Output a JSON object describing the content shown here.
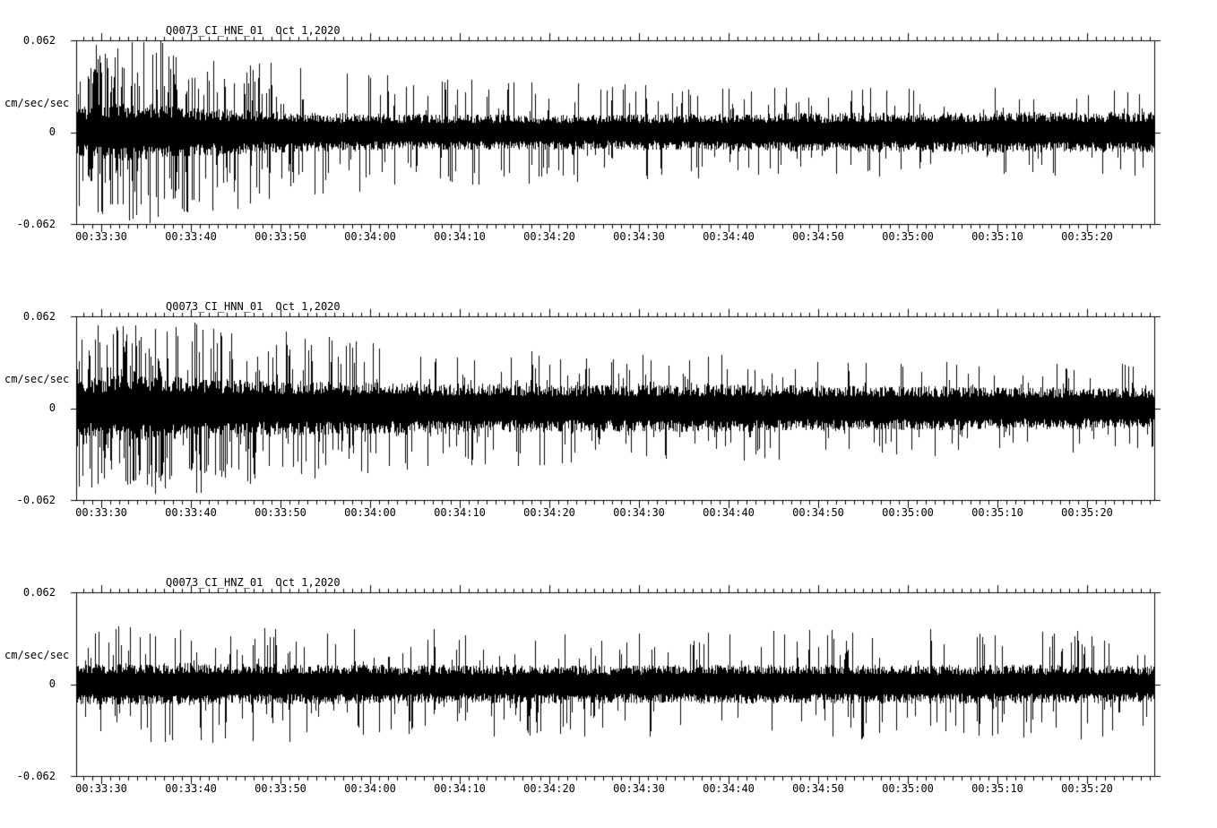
{
  "colors": {
    "background": "#ffffff",
    "trace": "#000000",
    "frame": "#000000"
  },
  "chart_data": [
    {
      "type": "line",
      "kind": "seismic-waveform",
      "title": "Q0073_CI_HNE_01",
      "date": "Oct 1,2020",
      "ylabel": "cm/sec/sec",
      "xlabel": "",
      "ylim": [
        -0.062,
        0.062
      ],
      "ytick_labels": [
        "0.062",
        "0",
        "-0.062"
      ],
      "xtick_labels": [
        "00:33:30",
        "00:33:40",
        "00:33:50",
        "00:34:00",
        "00:34:10",
        "00:34:20",
        "00:34:30",
        "00:34:40",
        "00:34:50",
        "00:35:00",
        "00:35:10",
        "00:35:20"
      ],
      "x_tick_interval_seconds": 10,
      "x_minor_tick_seconds": 1,
      "grid": false,
      "legend": "none",
      "seed": 20201001,
      "envelope": [
        [
          0.0,
          0.26,
          0.3,
          0.95
        ],
        [
          0.03,
          0.32,
          0.4,
          1.0
        ],
        [
          0.08,
          0.3,
          0.35,
          1.0
        ],
        [
          0.12,
          0.26,
          0.25,
          0.9
        ],
        [
          0.2,
          0.22,
          0.18,
          0.75
        ],
        [
          0.3,
          0.2,
          0.12,
          0.6
        ],
        [
          0.45,
          0.19,
          0.1,
          0.55
        ],
        [
          0.65,
          0.21,
          0.09,
          0.5
        ],
        [
          0.85,
          0.22,
          0.09,
          0.5
        ],
        [
          1.0,
          0.22,
          0.08,
          0.48
        ]
      ]
    },
    {
      "type": "line",
      "kind": "seismic-waveform",
      "title": "Q0073_CI_HNN_01",
      "date": "Oct 1,2020",
      "ylabel": "cm/sec/sec",
      "xlabel": "",
      "ylim": [
        -0.062,
        0.062
      ],
      "ytick_labels": [
        "0.062",
        "0",
        "-0.062"
      ],
      "xtick_labels": [
        "00:33:30",
        "00:33:40",
        "00:33:50",
        "00:34:00",
        "00:34:10",
        "00:34:20",
        "00:34:30",
        "00:34:40",
        "00:34:50",
        "00:35:00",
        "00:35:10",
        "00:35:20"
      ],
      "x_tick_interval_seconds": 10,
      "x_minor_tick_seconds": 1,
      "grid": false,
      "legend": "none",
      "seed": 20201002,
      "envelope": [
        [
          0.0,
          0.3,
          0.35,
          0.9
        ],
        [
          0.04,
          0.36,
          0.4,
          0.95
        ],
        [
          0.1,
          0.34,
          0.3,
          0.95
        ],
        [
          0.18,
          0.3,
          0.22,
          0.85
        ],
        [
          0.3,
          0.28,
          0.18,
          0.7
        ],
        [
          0.45,
          0.26,
          0.14,
          0.62
        ],
        [
          0.6,
          0.26,
          0.12,
          0.58
        ],
        [
          0.8,
          0.24,
          0.1,
          0.52
        ],
        [
          1.0,
          0.22,
          0.09,
          0.48
        ]
      ]
    },
    {
      "type": "line",
      "kind": "seismic-waveform",
      "title": "Q0073_CI_HNZ_01",
      "date": "Oct 1,2020",
      "ylabel": "cm/sec/sec",
      "xlabel": "",
      "ylim": [
        -0.062,
        0.062
      ],
      "ytick_labels": [
        "0.062",
        "0",
        "-0.062"
      ],
      "xtick_labels": [
        "00:33:30",
        "00:33:40",
        "00:33:50",
        "00:34:00",
        "00:34:10",
        "00:34:20",
        "00:34:30",
        "00:34:40",
        "00:34:50",
        "00:35:00",
        "00:35:10",
        "00:35:20"
      ],
      "x_tick_interval_seconds": 10,
      "x_minor_tick_seconds": 1,
      "grid": false,
      "legend": "none",
      "seed": 20201003,
      "envelope": [
        [
          0.0,
          0.22,
          0.14,
          0.62
        ],
        [
          0.1,
          0.23,
          0.14,
          0.65
        ],
        [
          0.3,
          0.21,
          0.12,
          0.6
        ],
        [
          0.5,
          0.21,
          0.12,
          0.62
        ],
        [
          0.7,
          0.21,
          0.11,
          0.6
        ],
        [
          0.9,
          0.21,
          0.11,
          0.62
        ],
        [
          1.0,
          0.2,
          0.1,
          0.58
        ]
      ]
    }
  ]
}
